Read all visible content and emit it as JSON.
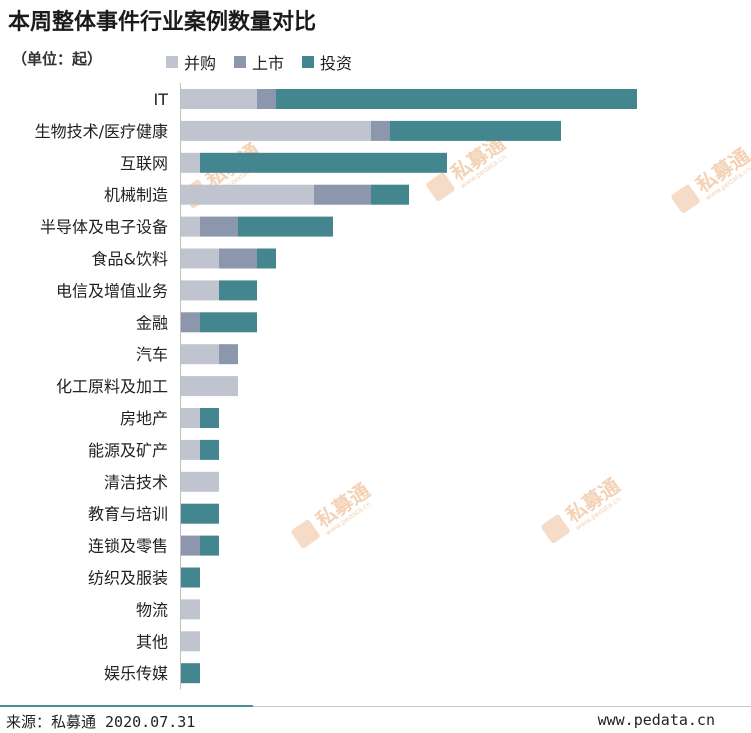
{
  "title": "本周整体事件行业案例数量对比",
  "unit_label": "（单位：起）",
  "colors": {
    "并购": "#c0c4cf",
    "上市": "#8c96ad",
    "投资": "#44868f"
  },
  "watermark": {
    "text": "私募通",
    "sub": "www.pedata.cn"
  },
  "chart_data": {
    "type": "bar",
    "orientation": "horizontal",
    "stacked": true,
    "title": "本周整体事件行业案例数量对比",
    "legend_position": "top",
    "grid": false,
    "categories": [
      "IT",
      "生物技术/医疗健康",
      "互联网",
      "机械制造",
      "半导体及电子设备",
      "食品&饮料",
      "电信及增值业务",
      "金融",
      "汽车",
      "化工原料及加工",
      "房地产",
      "能源及矿产",
      "清洁技术",
      "教育与培训",
      "连锁及零售",
      "纺织及服装",
      "物流",
      "其他",
      "娱乐传媒"
    ],
    "series": [
      {
        "name": "并购",
        "values": [
          4,
          10,
          1,
          7,
          1,
          2,
          2,
          0,
          2,
          3,
          1,
          1,
          2,
          0,
          0,
          0,
          1,
          1,
          0
        ]
      },
      {
        "name": "上市",
        "values": [
          1,
          1,
          0,
          3,
          2,
          2,
          0,
          1,
          1,
          0,
          0,
          0,
          0,
          0,
          1,
          0,
          0,
          0,
          0
        ]
      },
      {
        "name": "投资",
        "values": [
          19,
          9,
          13,
          2,
          5,
          1,
          2,
          3,
          0,
          0,
          1,
          1,
          0,
          2,
          1,
          1,
          0,
          0,
          1
        ]
      }
    ]
  },
  "footer": {
    "source": "来源：私募通 2020.07.31",
    "website": "www.pedata.cn"
  }
}
